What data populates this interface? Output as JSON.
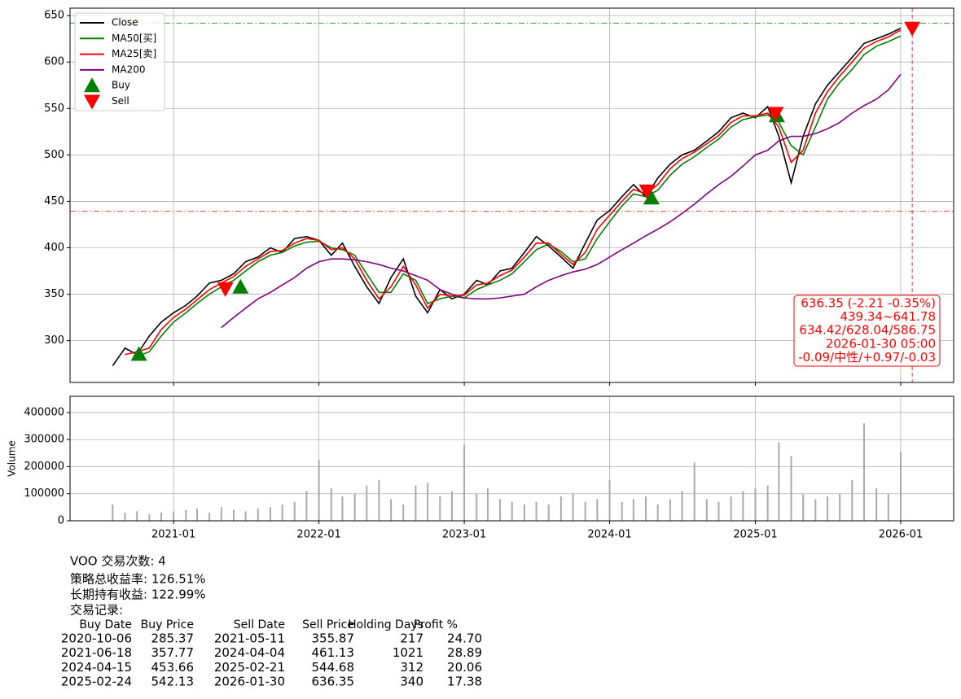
{
  "chart_data": [
    {
      "type": "line",
      "x": [
        "2020-08",
        "2020-09",
        "2020-10",
        "2020-11",
        "2020-12",
        "2021-01",
        "2021-02",
        "2021-03",
        "2021-04",
        "2021-05",
        "2021-06",
        "2021-07",
        "2021-08",
        "2021-09",
        "2021-10",
        "2021-11",
        "2021-12",
        "2022-01",
        "2022-02",
        "2022-03",
        "2022-04",
        "2022-05",
        "2022-06",
        "2022-07",
        "2022-08",
        "2022-09",
        "2022-10",
        "2022-11",
        "2022-12",
        "2023-01",
        "2023-02",
        "2023-03",
        "2023-04",
        "2023-05",
        "2023-06",
        "2023-07",
        "2023-08",
        "2023-09",
        "2023-10",
        "2023-11",
        "2023-12",
        "2024-01",
        "2024-02",
        "2024-03",
        "2024-04",
        "2024-05",
        "2024-06",
        "2024-07",
        "2024-08",
        "2024-09",
        "2024-10",
        "2024-11",
        "2024-12",
        "2025-01",
        "2025-02",
        "2025-03",
        "2025-04",
        "2025-05",
        "2025-06",
        "2025-07",
        "2025-08",
        "2025-09",
        "2025-10",
        "2025-11",
        "2025-12",
        "2026-01"
      ],
      "series": [
        {
          "name": "Close",
          "color": "#000000",
          "values": [
            273,
            292,
            285,
            305,
            320,
            330,
            338,
            348,
            362,
            365,
            372,
            385,
            390,
            400,
            395,
            410,
            412,
            408,
            392,
            405,
            380,
            358,
            340,
            368,
            388,
            348,
            330,
            355,
            345,
            350,
            365,
            360,
            375,
            378,
            395,
            412,
            402,
            390,
            378,
            405,
            430,
            440,
            455,
            468,
            455,
            475,
            490,
            500,
            505,
            515,
            525,
            540,
            545,
            540,
            552,
            520,
            470,
            520,
            555,
            575,
            590,
            605,
            620,
            625,
            630,
            636.35
          ]
        },
        {
          "name": "MA50[买]",
          "color": "#008000",
          "values": [
            null,
            null,
            283,
            288,
            305,
            320,
            330,
            340,
            350,
            358,
            365,
            375,
            385,
            392,
            395,
            402,
            406,
            407,
            400,
            398,
            392,
            372,
            352,
            352,
            372,
            365,
            340,
            345,
            348,
            346,
            355,
            360,
            365,
            372,
            385,
            398,
            404,
            396,
            385,
            388,
            410,
            428,
            445,
            458,
            455,
            462,
            478,
            490,
            498,
            508,
            517,
            530,
            538,
            541,
            543,
            535,
            510,
            500,
            530,
            560,
            578,
            592,
            608,
            617,
            622,
            628.04
          ]
        },
        {
          "name": "MA25[卖]",
          "color": "#ff0000",
          "values": [
            null,
            285,
            288,
            292,
            312,
            325,
            334,
            344,
            355,
            362,
            369,
            380,
            388,
            396,
            397,
            405,
            410,
            408,
            398,
            400,
            388,
            365,
            345,
            358,
            380,
            360,
            335,
            350,
            348,
            349,
            360,
            362,
            370,
            376,
            390,
            405,
            405,
            393,
            382,
            395,
            420,
            435,
            450,
            463,
            458,
            468,
            485,
            496,
            503,
            512,
            521,
            535,
            542,
            542,
            545,
            530,
            492,
            505,
            545,
            568,
            585,
            600,
            615,
            622,
            627,
            634.42
          ]
        },
        {
          "name": "MA200",
          "color": "#800080",
          "values": [
            null,
            null,
            null,
            null,
            null,
            null,
            null,
            null,
            null,
            314,
            325,
            335,
            345,
            352,
            360,
            368,
            378,
            385,
            388,
            388,
            387,
            385,
            382,
            378,
            375,
            370,
            365,
            355,
            350,
            346,
            345,
            345,
            346,
            348,
            350,
            358,
            365,
            370,
            374,
            377,
            382,
            390,
            398,
            405,
            413,
            420,
            428,
            437,
            447,
            458,
            468,
            477,
            488,
            500,
            505,
            515,
            520,
            520,
            523,
            528,
            535,
            545,
            553,
            560,
            570,
            586.75
          ]
        },
        {
          "name": "Buy",
          "color": "#008000",
          "marker": "triangle-up",
          "x": [
            "2020-10-06",
            "2021-06-18",
            "2024-04-15",
            "2025-02-24"
          ],
          "values": [
            285.37,
            357.77,
            453.66,
            542.13
          ]
        },
        {
          "name": "Sell",
          "color": "#ff0000",
          "marker": "triangle-down",
          "x": [
            "2021-05-11",
            "2024-04-04",
            "2025-02-21",
            "2026-01-30"
          ],
          "values": [
            355.87,
            461.13,
            544.68,
            636.35
          ]
        }
      ],
      "xlim": [
        "2020-04-16",
        "2026-05-14"
      ],
      "xticks": [
        "2021-01",
        "2022-01",
        "2023-01",
        "2024-01",
        "2025-01",
        "2026-01"
      ],
      "ylim": [
        255,
        658
      ],
      "yticks": [
        300,
        350,
        400,
        450,
        500,
        550,
        600,
        650
      ],
      "grid": true,
      "legend": "upper left",
      "reference_lines": [
        {
          "value": 641.78,
          "color": "#008000"
        },
        {
          "value": 439.34,
          "color": "#ff0000"
        }
      ],
      "vline": {
        "x": "2026-01-30",
        "color": "#ff0000"
      },
      "annotation": {
        "color": "#ff0000",
        "lines": [
          "636.35 (-2.21 -0.35%)",
          "439.34~641.78",
          "634.42/628.04/586.75",
          "2026-01-30 05:00",
          "-0.09/中性/+0.97/-0.03"
        ]
      }
    },
    {
      "type": "bar",
      "y_label": "Volume",
      "color": "#aaaaaa",
      "x": [
        "2020-08",
        "2020-09",
        "2020-10",
        "2020-11",
        "2020-12",
        "2021-01",
        "2021-02",
        "2021-03",
        "2021-04",
        "2021-05",
        "2021-06",
        "2021-07",
        "2021-08",
        "2021-09",
        "2021-10",
        "2021-11",
        "2021-12",
        "2022-01",
        "2022-02",
        "2022-03",
        "2022-04",
        "2022-05",
        "2022-06",
        "2022-07",
        "2022-08",
        "2022-09",
        "2022-10",
        "2022-11",
        "2022-12",
        "2023-01",
        "2023-02",
        "2023-03",
        "2023-04",
        "2023-05",
        "2023-06",
        "2023-07",
        "2023-08",
        "2023-09",
        "2023-10",
        "2023-11",
        "2023-12",
        "2024-01",
        "2024-02",
        "2024-03",
        "2024-04",
        "2024-05",
        "2024-06",
        "2024-07",
        "2024-08",
        "2024-09",
        "2024-10",
        "2024-11",
        "2024-12",
        "2025-01",
        "2025-02",
        "2025-03",
        "2025-04",
        "2025-05",
        "2025-06",
        "2025-07",
        "2025-08",
        "2025-09",
        "2025-10",
        "2025-11",
        "2025-12",
        "2026-01"
      ],
      "values": [
        60000,
        30000,
        35000,
        25000,
        30000,
        35000,
        40000,
        45000,
        30000,
        50000,
        40000,
        35000,
        45000,
        50000,
        60000,
        70000,
        110000,
        225000,
        120000,
        90000,
        100000,
        130000,
        150000,
        80000,
        60000,
        130000,
        140000,
        90000,
        110000,
        280000,
        100000,
        120000,
        80000,
        70000,
        60000,
        70000,
        60000,
        90000,
        100000,
        70000,
        80000,
        150000,
        70000,
        80000,
        90000,
        60000,
        80000,
        110000,
        215000,
        80000,
        70000,
        90000,
        110000,
        120000,
        130000,
        290000,
        240000,
        100000,
        80000,
        90000,
        100000,
        150000,
        360000,
        120000,
        100000,
        255000
      ],
      "xlim": [
        "2020-04-16",
        "2026-05-14"
      ],
      "xticks": [
        "2021-01",
        "2022-01",
        "2023-01",
        "2024-01",
        "2025-01",
        "2026-01"
      ],
      "ylim": [
        0,
        460000
      ],
      "yticks": [
        0,
        100000,
        200000,
        300000,
        400000
      ],
      "grid": true
    }
  ],
  "report": {
    "lines": [
      "VOO 交易次数: 4",
      "策略总收益率: 126.51%",
      "长期持有收益: 122.99%",
      "交易记录:"
    ],
    "table": {
      "columns": [
        "Buy Date",
        "Buy Price",
        "Sell Date",
        "Sell Price",
        "Holding Days",
        "Profit %"
      ],
      "rows": [
        [
          "2020-10-06",
          "285.37",
          "2021-05-11",
          "355.87",
          "217",
          "24.70"
        ],
        [
          "2021-06-18",
          "357.77",
          "2024-04-04",
          "461.13",
          "1021",
          "28.89"
        ],
        [
          "2024-04-15",
          "453.66",
          "2025-02-21",
          "544.68",
          "312",
          "20.06"
        ],
        [
          "2025-02-24",
          "542.13",
          "2026-01-30",
          "636.35",
          "340",
          "17.38"
        ]
      ]
    }
  }
}
